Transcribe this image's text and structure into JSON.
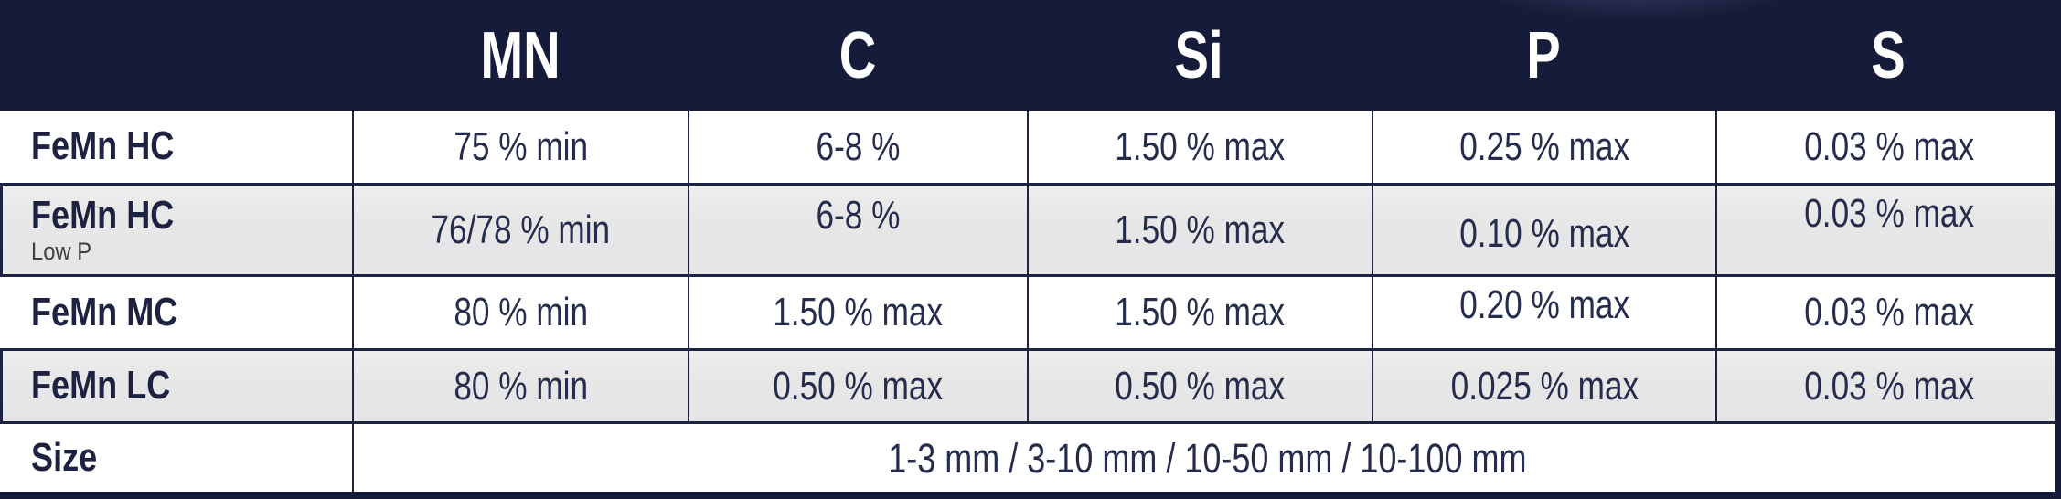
{
  "chart_data": {
    "type": "table",
    "title": "",
    "columns": [
      "",
      "MN",
      "C",
      "Si",
      "P",
      "S"
    ],
    "rows": [
      {
        "label": "FeMn HC",
        "sublabel": "",
        "values": [
          "75 % min",
          "6-8 %",
          "1.50 % max",
          "0.25 % max",
          "0.03 % max"
        ]
      },
      {
        "label": "FeMn HC",
        "sublabel": "Low P",
        "values": [
          "76/78 % min",
          "6-8 %",
          "1.50 % max",
          "0.10 % max",
          "0.03 % max"
        ]
      },
      {
        "label": "FeMn MC",
        "sublabel": "",
        "values": [
          "80 % min",
          "1.50 % max",
          "1.50 % max",
          "0.20 % max",
          "0.03 % max"
        ]
      },
      {
        "label": "FeMn LC",
        "sublabel": "",
        "values": [
          "80 % min",
          "0.50 % max",
          "0.50 % max",
          "0.025 % max",
          "0.03 % max"
        ]
      }
    ],
    "footer_row": {
      "label": "Size",
      "value": "1-3 mm / 3-10 mm / 10-50 mm / 10-100 mm"
    },
    "layout_hints": {
      "alternating_row_shading": true,
      "header_style": "dark-navy-bar",
      "grid": true
    }
  },
  "colors": {
    "header_background": "#151b38",
    "header_text": "#ffffff",
    "border_navy": "#1d2342",
    "cell_text": "#262c4b",
    "alt_row_background": "#e7e7e8",
    "sublabel_gray": "#3f3f3f",
    "row_background": "#ffffff"
  }
}
